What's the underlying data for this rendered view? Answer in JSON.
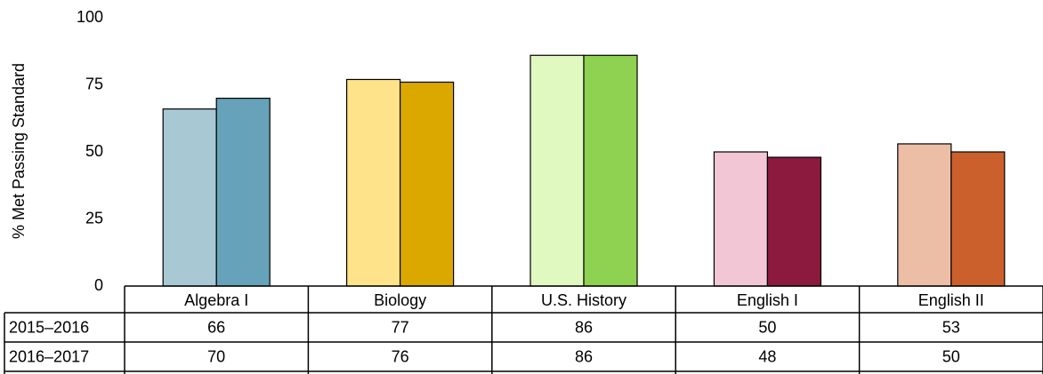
{
  "chart_data": {
    "type": "bar",
    "y_label": "% Met Passing Standard",
    "categories": [
      "Algebra I",
      "Biology",
      "U.S. History",
      "English I",
      "English II"
    ],
    "series": [
      {
        "name": "2015–2016",
        "colors": [
          "#a8c8d4",
          "#ffe38a",
          "#e0f9c0",
          "#f3c6d6",
          "#ecbea6"
        ],
        "values": [
          66,
          77,
          86,
          50,
          53
        ]
      },
      {
        "name": "2016–2017",
        "colors": [
          "#66a3bb",
          "#dba800",
          "#8fd151",
          "#8b1a3e",
          "#cb602d"
        ],
        "values": [
          70,
          76,
          86,
          48,
          50
        ]
      }
    ],
    "ylim": [
      0,
      100
    ],
    "yticks": [
      0,
      25,
      50,
      75,
      100
    ],
    "grid": false
  }
}
